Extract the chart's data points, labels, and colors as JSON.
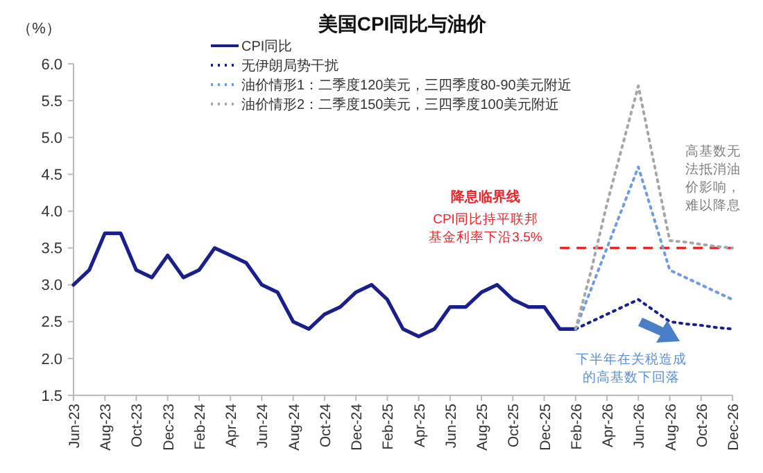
{
  "chart_data": {
    "type": "line",
    "title": "美国CPI同比与油价",
    "ylabel": "（%）",
    "categories": [
      "Jun-23",
      null,
      "Aug-23",
      null,
      "Oct-23",
      null,
      "Dec-23",
      null,
      "Feb-24",
      null,
      "Apr-24",
      null,
      "Jun-24",
      null,
      "Aug-24",
      null,
      "Oct-24",
      null,
      "Dec-24",
      null,
      "Feb-25",
      null,
      "Apr-25",
      null,
      "Jun-25",
      null,
      "Aug-25",
      null,
      "Oct-25",
      null,
      "Dec-25",
      null,
      "Feb-26",
      null,
      "Apr-26",
      null,
      "Jun-26",
      null,
      "Aug-26",
      null,
      "Oct-26",
      null,
      "Dec-26"
    ],
    "series": [
      {
        "name": "CPI同比",
        "color": "#1b1f8a",
        "line_style": "solid",
        "values": [
          3.0,
          3.2,
          3.7,
          3.7,
          3.2,
          3.1,
          3.4,
          3.1,
          3.2,
          3.5,
          3.4,
          3.3,
          3.0,
          2.9,
          2.5,
          2.4,
          2.6,
          2.7,
          2.9,
          3.0,
          2.8,
          2.4,
          2.3,
          2.4,
          2.7,
          2.7,
          2.9,
          3.0,
          2.8,
          2.7,
          2.7,
          2.4,
          2.4,
          null,
          null,
          null,
          null,
          null,
          null,
          null,
          null,
          null,
          null
        ]
      },
      {
        "name": "无伊朗局势干扰",
        "color": "#1b1f8a",
        "line_style": "dotted",
        "values": [
          null,
          null,
          null,
          null,
          null,
          null,
          null,
          null,
          null,
          null,
          null,
          null,
          null,
          null,
          null,
          null,
          null,
          null,
          null,
          null,
          null,
          null,
          null,
          null,
          null,
          null,
          null,
          null,
          null,
          null,
          null,
          null,
          2.4,
          2.5,
          2.6,
          2.7,
          2.8,
          2.65,
          2.5,
          2.47,
          2.45,
          2.42,
          2.4
        ]
      },
      {
        "name": "油价情形1：二季度120美元，三四季度80-90美元附近",
        "color": "#6f9be0",
        "line_style": "dotted",
        "values": [
          null,
          null,
          null,
          null,
          null,
          null,
          null,
          null,
          null,
          null,
          null,
          null,
          null,
          null,
          null,
          null,
          null,
          null,
          null,
          null,
          null,
          null,
          null,
          null,
          null,
          null,
          null,
          null,
          null,
          null,
          null,
          null,
          2.4,
          2.95,
          3.5,
          4.05,
          4.6,
          3.9,
          3.2,
          3.1,
          3.0,
          2.9,
          2.8
        ]
      },
      {
        "name": "油价情形2：二季度150美元，三四季度100美元附近",
        "color": "#a6a6a6",
        "line_style": "dotted",
        "values": [
          null,
          null,
          null,
          null,
          null,
          null,
          null,
          null,
          null,
          null,
          null,
          null,
          null,
          null,
          null,
          null,
          null,
          null,
          null,
          null,
          null,
          null,
          null,
          null,
          null,
          null,
          null,
          null,
          null,
          null,
          null,
          null,
          2.4,
          3.2,
          4.1,
          4.9,
          5.7,
          4.65,
          3.6,
          3.58,
          3.55,
          3.52,
          3.5
        ]
      }
    ],
    "ylim": [
      1.5,
      6.0
    ],
    "yticks": [
      {
        "value": 1.5,
        "label": "1.5"
      },
      {
        "value": 2.0,
        "label": "2.0"
      },
      {
        "value": 2.5,
        "label": "2.5"
      },
      {
        "value": 3.0,
        "label": "3.0"
      },
      {
        "value": 3.5,
        "label": "3.5"
      },
      {
        "value": 4.0,
        "label": "4.0"
      },
      {
        "value": 4.5,
        "label": "4.5"
      },
      {
        "value": 5.0,
        "label": "5.0"
      },
      {
        "value": 5.5,
        "label": "5.5"
      },
      {
        "value": 6.0,
        "label": "6.0"
      }
    ],
    "ref_lines": [
      {
        "axis": "y",
        "value": 3.5,
        "label": "降息临界线",
        "color": "#e8262b",
        "line_style": "dashed"
      }
    ],
    "annotations": [
      "CPI同比持平联邦基金利率下沿3.5%",
      "高基数无法抵消油价影响，难以降息",
      "下半年在关税造成的高基数下回落"
    ],
    "grid": false,
    "legend": "top",
    "marker": "none"
  }
}
